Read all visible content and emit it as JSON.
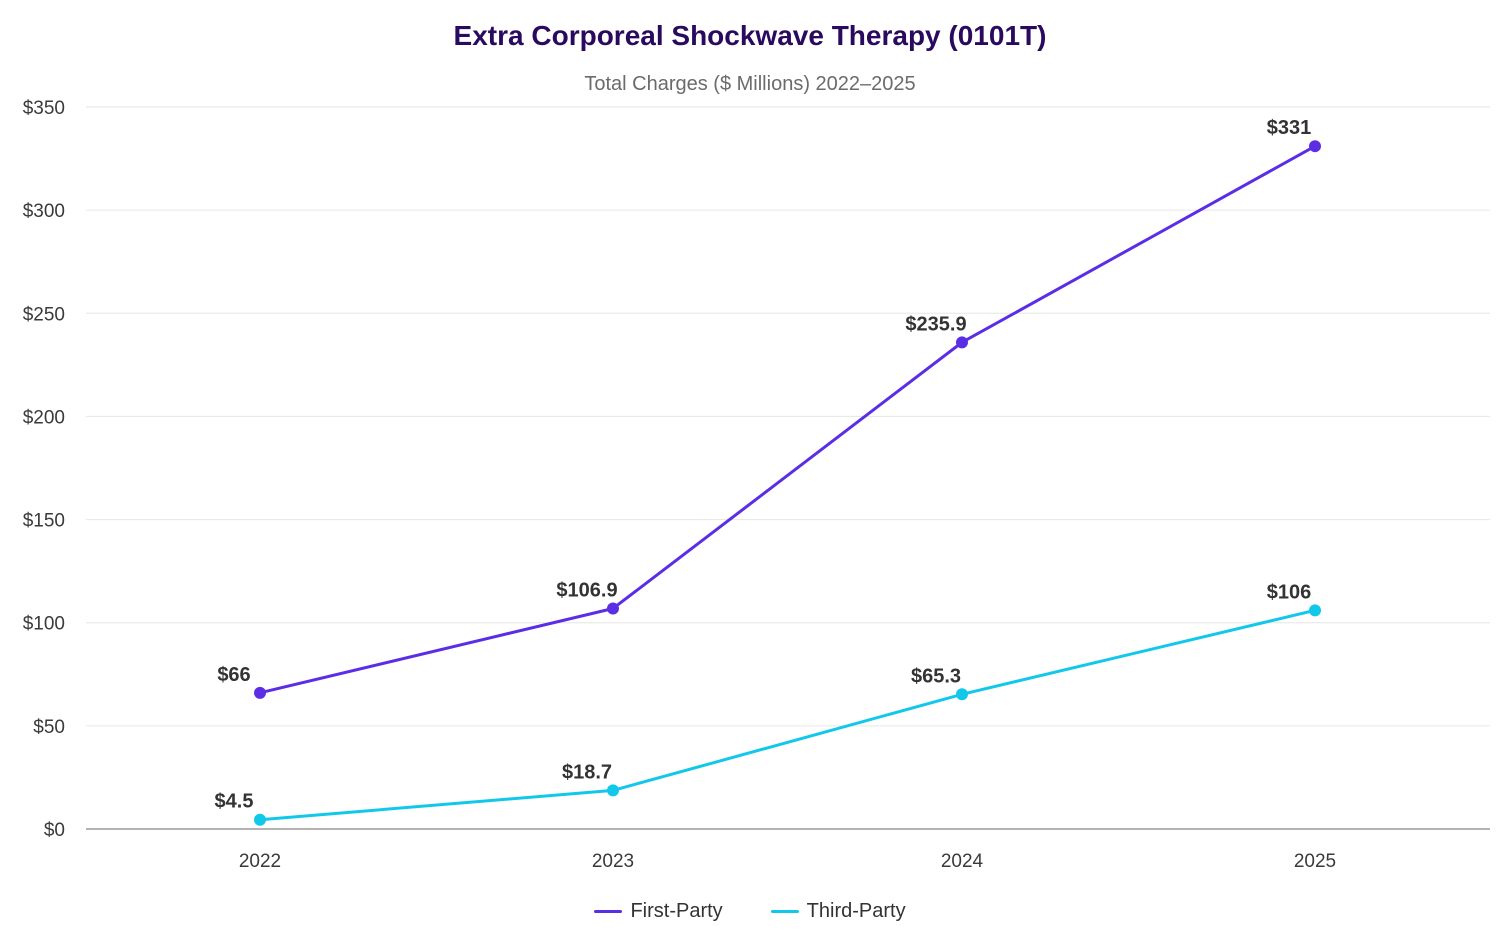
{
  "chart_data": {
    "type": "line",
    "title": "Extra Corporeal Shockwave Therapy (0101T)",
    "subtitle": "Total Charges ($ Millions) 2022–2025",
    "categories": [
      "2022",
      "2023",
      "2024",
      "2025"
    ],
    "y_ticks": [
      "$0",
      "$50",
      "$100",
      "$150",
      "$200",
      "$250",
      "$300",
      "$350"
    ],
    "ylim": [
      0,
      350
    ],
    "grid": true,
    "legend_position": "bottom",
    "series": [
      {
        "name": "First-Party",
        "color": "#5b2ee6",
        "values": [
          66,
          106.9,
          235.9,
          331
        ],
        "labels": [
          "$66",
          "$106.9",
          "$235.9",
          "$331"
        ]
      },
      {
        "name": "Third-Party",
        "color": "#12c8ea",
        "values": [
          4.5,
          18.7,
          65.3,
          106
        ],
        "labels": [
          "$4.5",
          "$18.7",
          "$65.3",
          "$106"
        ]
      }
    ]
  }
}
